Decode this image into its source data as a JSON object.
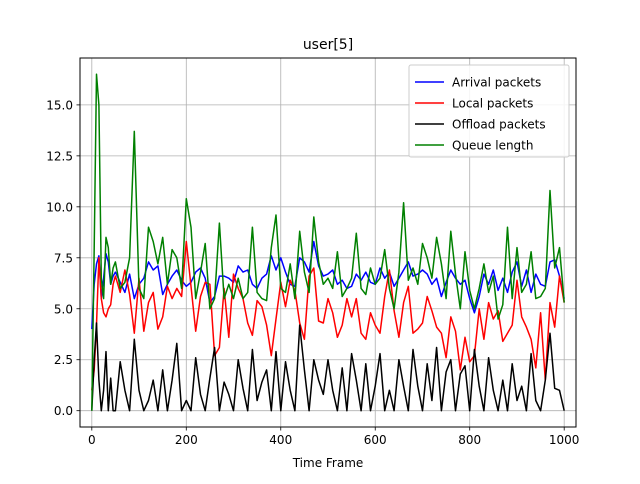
{
  "chart_data": {
    "type": "line",
    "title": "user[5]",
    "xlabel": "Time Frame",
    "ylabel": "",
    "xlim": [
      -25,
      1025
    ],
    "ylim": [
      -0.8,
      17.3
    ],
    "xticks": [
      0,
      200,
      400,
      600,
      800,
      1000
    ],
    "yticks": [
      0.0,
      2.5,
      5.0,
      7.5,
      10.0,
      12.5,
      15.0
    ],
    "xtick_labels": [
      "0",
      "200",
      "400",
      "600",
      "800",
      "1000"
    ],
    "ytick_labels": [
      "0.0",
      "2.5",
      "5.0",
      "7.5",
      "10.0",
      "12.5",
      "15.0"
    ],
    "grid": true,
    "legend_position": "top-right",
    "series": [
      {
        "name": "Arrival packets",
        "color": "#0000ff",
        "x": [
          0,
          5,
          10,
          15,
          20,
          25,
          30,
          35,
          40,
          45,
          50,
          60,
          70,
          80,
          90,
          100,
          110,
          120,
          130,
          140,
          150,
          160,
          170,
          180,
          190,
          200,
          210,
          220,
          230,
          240,
          250,
          260,
          270,
          280,
          290,
          300,
          310,
          320,
          330,
          340,
          350,
          360,
          370,
          380,
          390,
          400,
          410,
          420,
          430,
          440,
          450,
          460,
          470,
          480,
          490,
          500,
          510,
          520,
          530,
          540,
          550,
          560,
          570,
          580,
          590,
          600,
          610,
          620,
          630,
          640,
          650,
          660,
          670,
          680,
          690,
          700,
          710,
          720,
          730,
          740,
          750,
          760,
          770,
          780,
          790,
          800,
          810,
          820,
          830,
          840,
          850,
          860,
          870,
          880,
          890,
          900,
          910,
          920,
          930,
          940,
          950,
          960,
          970,
          980,
          990,
          1000
        ],
        "y": [
          4.0,
          6.2,
          7.2,
          7.6,
          5.5,
          6.5,
          7.7,
          7.3,
          6.2,
          6.6,
          6.8,
          6.3,
          5.8,
          6.7,
          5.5,
          6.2,
          6.5,
          7.3,
          6.9,
          7.1,
          5.7,
          6.2,
          6.6,
          6.9,
          6.4,
          6.1,
          6.3,
          6.8,
          7.0,
          6.5,
          5.3,
          5.6,
          6.6,
          6.6,
          6.5,
          6.3,
          7.1,
          6.8,
          6.9,
          6.2,
          6.0,
          6.5,
          6.7,
          7.6,
          6.9,
          7.5,
          6.8,
          6.2,
          6.1,
          7.5,
          7.3,
          6.8,
          8.3,
          7.1,
          6.6,
          6.7,
          6.9,
          6.2,
          6.4,
          6.0,
          6.1,
          6.7,
          6.4,
          6.8,
          6.3,
          6.2,
          7.0,
          6.5,
          6.8,
          6.1,
          6.5,
          6.9,
          7.3,
          6.6,
          6.7,
          6.9,
          6.7,
          6.2,
          6.5,
          5.6,
          6.3,
          6.9,
          6.5,
          6.2,
          6.4,
          5.5,
          4.8,
          5.6,
          6.7,
          6.2,
          6.9,
          5.9,
          6.5,
          5.8,
          6.8,
          7.3,
          6.1,
          6.9,
          5.8,
          6.7,
          6.2,
          6.1,
          7.3,
          7.4,
          6.6,
          5.5
        ]
      },
      {
        "name": "Local packets",
        "color": "#ff0000",
        "x": [
          0,
          5,
          10,
          15,
          20,
          25,
          30,
          35,
          40,
          45,
          50,
          60,
          70,
          80,
          90,
          100,
          110,
          120,
          130,
          140,
          150,
          160,
          170,
          180,
          190,
          200,
          210,
          220,
          230,
          240,
          250,
          260,
          270,
          280,
          290,
          300,
          310,
          320,
          330,
          340,
          350,
          360,
          370,
          380,
          390,
          400,
          410,
          420,
          430,
          440,
          450,
          460,
          470,
          480,
          490,
          500,
          510,
          520,
          530,
          540,
          550,
          560,
          570,
          580,
          590,
          600,
          610,
          620,
          630,
          640,
          650,
          660,
          670,
          680,
          690,
          700,
          710,
          720,
          730,
          740,
          750,
          760,
          770,
          780,
          790,
          800,
          810,
          820,
          830,
          840,
          850,
          860,
          870,
          880,
          890,
          900,
          910,
          920,
          930,
          940,
          950,
          960,
          970,
          980,
          990,
          1000
        ],
        "y": [
          1.0,
          2.0,
          4.2,
          7.5,
          5.5,
          4.8,
          4.6,
          5.0,
          5.2,
          6.2,
          6.6,
          5.8,
          6.9,
          5.7,
          3.8,
          6.5,
          3.9,
          5.3,
          5.8,
          4.0,
          4.6,
          6.1,
          5.5,
          6.0,
          5.6,
          8.3,
          6.1,
          3.9,
          5.6,
          6.3,
          6.2,
          2.7,
          3.1,
          6.0,
          3.6,
          6.7,
          6.0,
          5.5,
          4.3,
          3.7,
          5.4,
          5.1,
          4.2,
          2.7,
          4.5,
          6.3,
          5.1,
          6.4,
          5.9,
          4.3,
          3.5,
          6.6,
          7.0,
          4.4,
          4.3,
          5.5,
          4.8,
          3.6,
          4.2,
          5.5,
          4.6,
          5.5,
          3.8,
          3.5,
          4.8,
          4.2,
          3.8,
          5.6,
          6.9,
          4.9,
          3.6,
          5.3,
          6.1,
          3.8,
          4.0,
          4.3,
          5.6,
          4.9,
          4.1,
          3.8,
          2.6,
          4.6,
          3.9,
          2.0,
          3.6,
          2.4,
          2.7,
          5.0,
          3.5,
          5.3,
          4.5,
          4.9,
          3.4,
          3.8,
          4.2,
          6.4,
          4.6,
          4.1,
          3.5,
          2.1,
          4.8,
          1.5,
          5.3,
          4.1,
          6.6,
          5.3
        ]
      },
      {
        "name": "Offload packets",
        "color": "#000000",
        "x": [
          0,
          5,
          10,
          15,
          20,
          25,
          30,
          35,
          40,
          45,
          50,
          60,
          70,
          80,
          90,
          100,
          110,
          120,
          130,
          140,
          150,
          160,
          170,
          180,
          190,
          200,
          210,
          220,
          230,
          240,
          250,
          260,
          270,
          280,
          290,
          300,
          310,
          320,
          330,
          340,
          350,
          360,
          370,
          380,
          390,
          400,
          410,
          420,
          430,
          440,
          450,
          460,
          470,
          480,
          490,
          500,
          510,
          520,
          530,
          540,
          550,
          560,
          570,
          580,
          590,
          600,
          610,
          620,
          630,
          640,
          650,
          660,
          670,
          680,
          690,
          700,
          710,
          720,
          730,
          740,
          750,
          760,
          770,
          780,
          790,
          800,
          810,
          820,
          830,
          840,
          850,
          860,
          870,
          880,
          890,
          900,
          910,
          920,
          930,
          940,
          950,
          960,
          970,
          980,
          990,
          1000
        ],
        "y": [
          0.0,
          2.5,
          4.3,
          1.5,
          0.0,
          1.0,
          2.9,
          0.0,
          1.6,
          0.0,
          0.0,
          2.4,
          1.0,
          0.0,
          3.5,
          1.0,
          0.0,
          0.5,
          1.5,
          0.0,
          2.0,
          0.0,
          1.5,
          3.3,
          0.0,
          0.5,
          0.0,
          2.6,
          0.8,
          0.0,
          1.6,
          3.1,
          0.0,
          1.4,
          0.8,
          0.0,
          2.5,
          1.1,
          0.0,
          3.0,
          0.5,
          1.4,
          2.0,
          0.0,
          2.9,
          0.0,
          2.4,
          1.0,
          0.0,
          4.2,
          2.0,
          0.0,
          2.5,
          1.5,
          0.8,
          2.5,
          1.0,
          0.0,
          2.1,
          0.0,
          2.8,
          1.5,
          0.0,
          2.3,
          0.0,
          1.2,
          2.8,
          0.0,
          1.0,
          0.0,
          2.5,
          1.2,
          0.0,
          3.0,
          1.2,
          0.0,
          2.3,
          0.5,
          3.1,
          0.0,
          1.9,
          2.5,
          0.0,
          1.8,
          2.2,
          0.0,
          3.0,
          1.2,
          0.0,
          2.6,
          1.0,
          0.0,
          1.5,
          0.0,
          2.3,
          0.5,
          1.2,
          0.0,
          2.8,
          0.5,
          0.0,
          1.5,
          3.8,
          1.1,
          1.0,
          0.0
        ]
      },
      {
        "name": "Queue length",
        "color": "#008000",
        "x": [
          0,
          5,
          10,
          15,
          20,
          25,
          30,
          35,
          40,
          45,
          50,
          60,
          70,
          80,
          90,
          100,
          110,
          120,
          130,
          140,
          150,
          160,
          170,
          180,
          190,
          200,
          210,
          220,
          230,
          240,
          250,
          260,
          270,
          280,
          290,
          300,
          310,
          320,
          330,
          340,
          350,
          360,
          370,
          380,
          390,
          400,
          410,
          420,
          430,
          440,
          450,
          460,
          470,
          480,
          490,
          500,
          510,
          520,
          530,
          540,
          550,
          560,
          570,
          580,
          590,
          600,
          610,
          620,
          630,
          640,
          650,
          660,
          670,
          680,
          690,
          700,
          710,
          720,
          730,
          740,
          750,
          760,
          770,
          780,
          790,
          800,
          810,
          820,
          830,
          840,
          850,
          860,
          870,
          880,
          890,
          900,
          910,
          920,
          930,
          940,
          950,
          960,
          970,
          980,
          990,
          1000
        ],
        "y": [
          0.0,
          8.0,
          16.5,
          15.0,
          6.5,
          5.5,
          8.5,
          8.0,
          6.2,
          7.0,
          7.3,
          6.0,
          6.3,
          7.5,
          13.7,
          6.0,
          5.5,
          9.0,
          8.3,
          7.2,
          8.5,
          6.2,
          7.9,
          7.5,
          6.0,
          10.4,
          9.0,
          5.5,
          6.8,
          8.2,
          5.0,
          5.5,
          9.2,
          5.5,
          6.2,
          5.5,
          6.5,
          5.5,
          5.8,
          9.0,
          5.8,
          5.5,
          5.4,
          8.0,
          9.6,
          6.0,
          5.8,
          7.2,
          5.5,
          8.8,
          6.8,
          5.8,
          9.5,
          7.3,
          6.2,
          6.5,
          6.0,
          7.8,
          5.6,
          6.0,
          6.5,
          8.7,
          6.0,
          5.7,
          7.0,
          6.2,
          6.5,
          7.9,
          6.0,
          5.0,
          6.8,
          10.2,
          6.4,
          7.0,
          6.2,
          8.2,
          7.5,
          6.5,
          8.5,
          7.2,
          5.5,
          8.8,
          6.7,
          5.0,
          7.8,
          5.9,
          5.0,
          6.0,
          7.2,
          5.8,
          6.6,
          4.5,
          5.2,
          9.0,
          5.5,
          8.0,
          5.8,
          6.2,
          7.8,
          5.5,
          5.6,
          6.0,
          10.8,
          7.0,
          8.0,
          5.3
        ]
      }
    ]
  }
}
